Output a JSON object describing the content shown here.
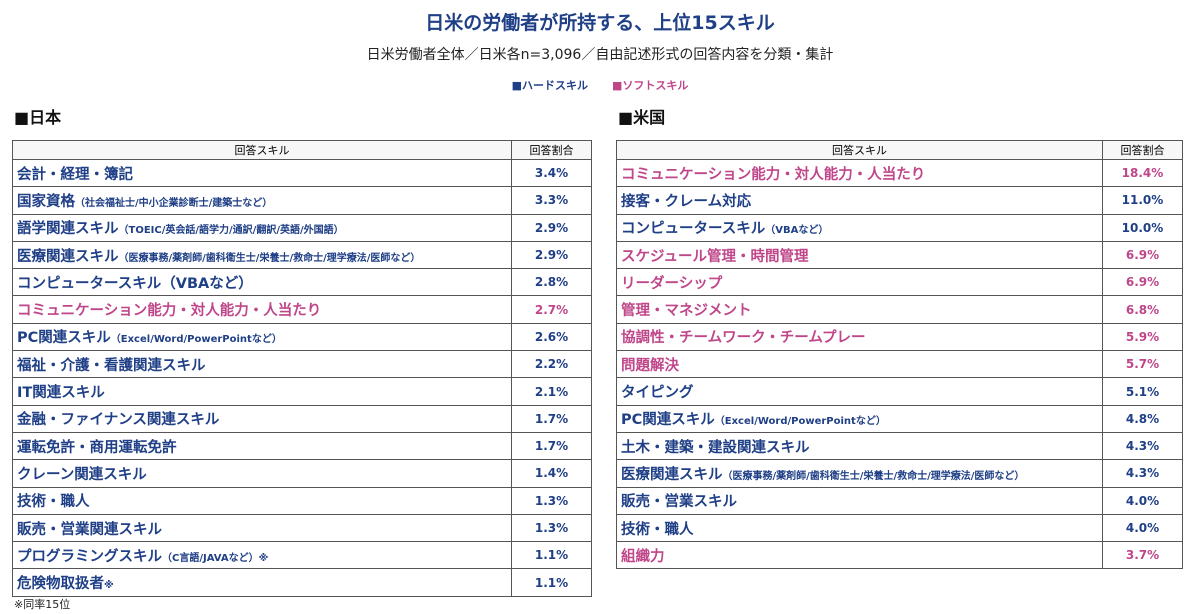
{
  "header": {
    "title": "日米の労働者が所持する、上位15スキル",
    "subtitle": "日米労働者全体／日米各n=3,096／自由記述形式の回答内容を分類・集計"
  },
  "legend": [
    {
      "label": "■ハードスキル",
      "color": "#1f3f86"
    },
    {
      "label": "■ソフトスキル",
      "color": "#c0468a"
    }
  ],
  "japan": {
    "heading": "■日本",
    "columns": [
      "回答スキル",
      "回答割合"
    ],
    "rows": [
      {
        "skill": "会計・経理・簿記",
        "value": "3.4%",
        "color": "#1f3f86"
      },
      {
        "skill": "国家資格",
        "note": "（社会福祉士/中小企業診断士/建築士など）",
        "value": "3.3%",
        "color": "#1f3f86"
      },
      {
        "skill": "語学関連スキル",
        "note": "（TOEIC/英会話/語学力/通訳/翻訳/英語/外国語）",
        "value": "2.9%",
        "color": "#1f3f86"
      },
      {
        "skill": "医療関連スキル",
        "note": "（医療事務/薬剤師/歯科衛生士/栄養士/救命士/理学療法/医師など）",
        "value": "2.9%",
        "color": "#1f3f86"
      },
      {
        "skill": "コンピュータースキル（VBAなど）",
        "value": "2.8%",
        "color": "#1f3f86"
      },
      {
        "skill": "コミュニケーション能力・対人能力・人当たり",
        "value": "2.7%",
        "color": "#c0468a"
      },
      {
        "skill": "PC関連スキル",
        "note": "（Excel/Word/PowerPointなど）",
        "value": "2.6%",
        "color": "#1f3f86"
      },
      {
        "skill": "福祉・介護・看護関連スキル",
        "value": "2.2%",
        "color": "#1f3f86"
      },
      {
        "skill": "IT関連スキル",
        "value": "2.1%",
        "color": "#1f3f86"
      },
      {
        "skill": "金融・ファイナンス関連スキル",
        "value": "1.7%",
        "color": "#1f3f86"
      },
      {
        "skill": "運転免許・商用運転免許",
        "value": "1.7%",
        "color": "#1f3f86"
      },
      {
        "skill": "クレーン関連スキル",
        "value": "1.4%",
        "color": "#1f3f86"
      },
      {
        "skill": "技術・職人",
        "value": "1.3%",
        "color": "#1f3f86"
      },
      {
        "skill": "販売・営業関連スキル",
        "value": "1.3%",
        "color": "#1f3f86"
      },
      {
        "skill": "プログラミングスキル",
        "note": "（C言語/JAVAなど）※",
        "value": "1.1%",
        "color": "#1f3f86"
      },
      {
        "skill": "危険物取扱者",
        "note": "※",
        "value": "1.1%",
        "color": "#1f3f86"
      }
    ],
    "footnote": "※同率15位"
  },
  "us": {
    "heading": "■米国",
    "columns": [
      "回答スキル",
      "回答割合"
    ],
    "rows": [
      {
        "skill": "コミュニケーション能力・対人能力・人当たり",
        "value": "18.4%",
        "color": "#c0468a"
      },
      {
        "skill": "接客・クレーム対応",
        "value": "11.0%",
        "color": "#1f3f86"
      },
      {
        "skill": "コンピュータースキル",
        "note": "（VBAなど）",
        "value": "10.0%",
        "color": "#1f3f86"
      },
      {
        "skill": "スケジュール管理・時間管理",
        "value": "6.9%",
        "color": "#c0468a"
      },
      {
        "skill": "リーダーシップ",
        "value": "6.9%",
        "color": "#c0468a"
      },
      {
        "skill": "管理・マネジメント",
        "value": "6.8%",
        "color": "#c0468a"
      },
      {
        "skill": "協調性・チームワーク・チームプレー",
        "value": "5.9%",
        "color": "#c0468a"
      },
      {
        "skill": "問題解決",
        "value": "5.7%",
        "color": "#c0468a"
      },
      {
        "skill": "タイピング",
        "value": "5.1%",
        "color": "#1f3f86"
      },
      {
        "skill": "PC関連スキル",
        "note": "（Excel/Word/PowerPointなど）",
        "value": "4.8%",
        "color": "#1f3f86"
      },
      {
        "skill": "土木・建築・建設関連スキル",
        "value": "4.3%",
        "color": "#1f3f86"
      },
      {
        "skill": "医療関連スキル",
        "note": "（医療事務/薬剤師/歯科衛生士/栄養士/救命士/理学療法/医師など）",
        "value": "4.3%",
        "color": "#1f3f86"
      },
      {
        "skill": "販売・営業スキル",
        "value": "4.0%",
        "color": "#1f3f86"
      },
      {
        "skill": "技術・職人",
        "value": "4.0%",
        "color": "#1f3f86"
      },
      {
        "skill": "組織力",
        "value": "3.7%",
        "color": "#c0468a"
      }
    ]
  }
}
